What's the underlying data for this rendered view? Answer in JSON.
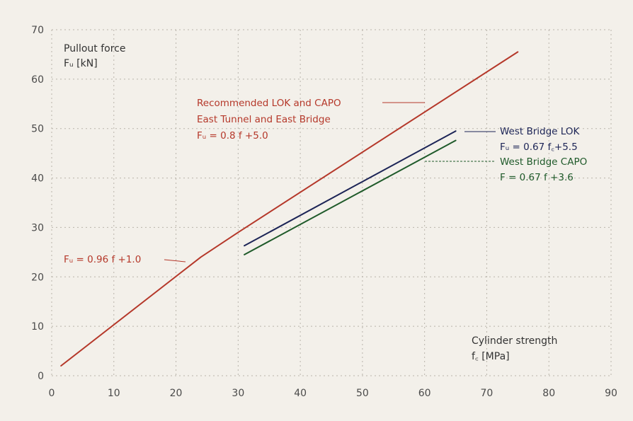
{
  "chart_data": {
    "type": "line",
    "title": "",
    "ylabel_line1": "Pullout force",
    "ylabel_line2": "Fᵤ [kN]",
    "xlabel_line1": "Cylinder strength",
    "xlabel_line2": "f꜀ [MPa]",
    "xlim": [
      0,
      90
    ],
    "ylim": [
      0,
      70
    ],
    "x_ticks": [
      0,
      10,
      20,
      30,
      40,
      50,
      60,
      70,
      80,
      90
    ],
    "y_ticks": [
      0,
      10,
      20,
      30,
      40,
      50,
      60,
      70
    ],
    "grid": true,
    "series": [
      {
        "name": "Recommended LOK and CAPO East Tunnel and East Bridge",
        "color": "#b5382a",
        "x": [
          1.5,
          24,
          30,
          75
        ],
        "y": [
          2.0,
          24.0,
          29.0,
          65.5
        ]
      },
      {
        "name": "West Bridge LOK",
        "color": "#1c2456",
        "x": [
          31,
          65
        ],
        "y": [
          26.3,
          49.5
        ]
      },
      {
        "name": "West Bridge CAPO",
        "color": "#1f5a2a",
        "x": [
          31,
          65
        ],
        "y": [
          24.5,
          47.6
        ]
      }
    ],
    "annotations": {
      "red_upper": {
        "lines": [
          "Recommended LOK and CAPO",
          "East Tunnel and East Bridge",
          "Fᵤ = 0.8 f +5.0"
        ],
        "color": "#b5382a"
      },
      "red_lower": {
        "text": "Fᵤ = 0.96 f +1.0",
        "color": "#b5382a"
      },
      "lok": {
        "lines": [
          "West Bridge LOK",
          "Fᵤ = 0.67 f꜀+5.5"
        ],
        "color": "#1c2456"
      },
      "capo": {
        "lines": [
          "West Bridge CAPO",
          "F = 0.67 f +3.6"
        ],
        "color": "#1f5a2a"
      }
    }
  }
}
